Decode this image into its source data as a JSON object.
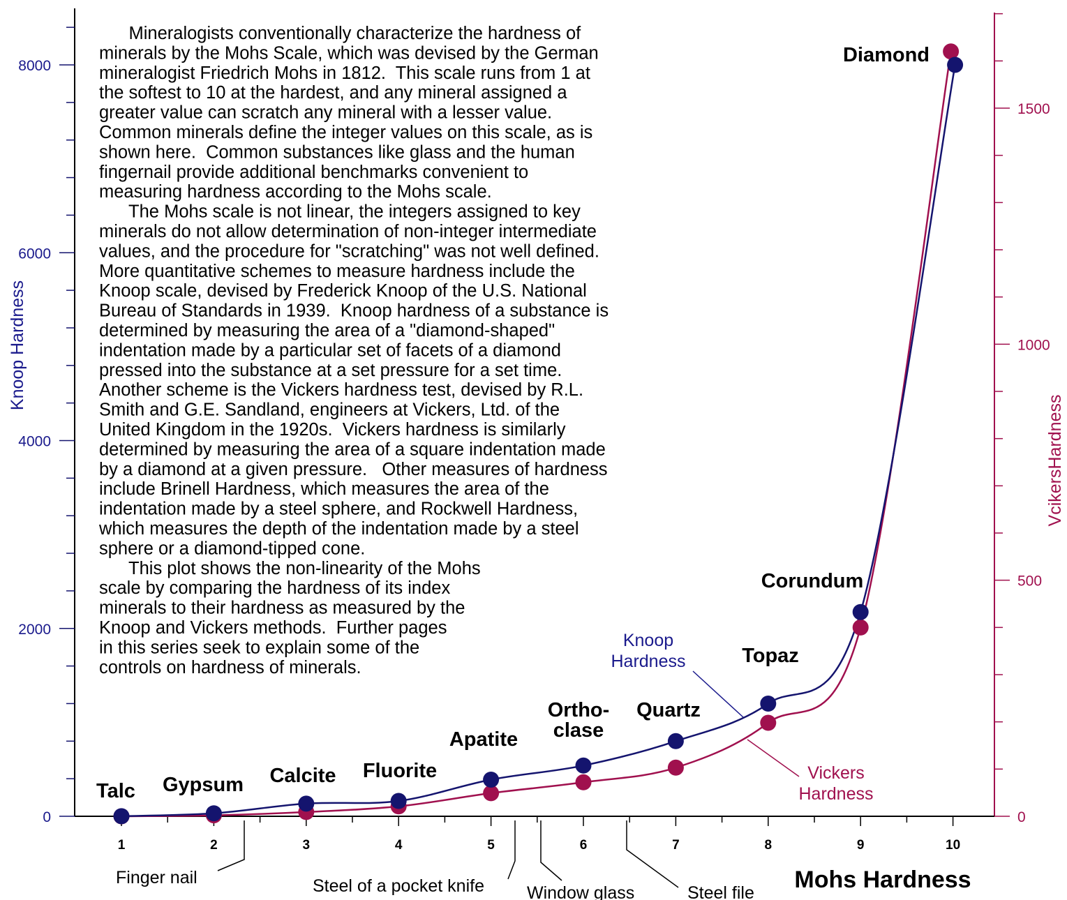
{
  "chart_data": {
    "type": "line",
    "xlabel": "Mohs Hardness",
    "ylabel": "Knoop Hardness",
    "y2label": "VcikersHardness",
    "xlim": [
      0.5,
      10.5
    ],
    "ylim": [
      0,
      8600
    ],
    "y2lim": [
      0,
      1720
    ],
    "x_ticks": [
      1,
      2,
      3,
      4,
      5,
      6,
      7,
      8,
      9,
      10
    ],
    "y_ticks": [
      0,
      2000,
      4000,
      6000,
      8000
    ],
    "y2_ticks": [
      0,
      500,
      1000,
      1500
    ],
    "grid": false,
    "minerals": [
      "Talc",
      "Gypsum",
      "Calcite",
      "Fluorite",
      "Apatite",
      "Ortho-\nclase",
      "Quartz",
      "Topaz",
      "Corundum",
      "Diamond"
    ],
    "series": [
      {
        "name": "Knoop Hardness",
        "axis": "left",
        "color": "#14146e",
        "x": [
          1,
          2,
          3,
          4,
          5,
          6,
          7,
          8,
          9,
          10
        ],
        "y": [
          1,
          32,
          135,
          163,
          390,
          540,
          800,
          1200,
          2175,
          8000
        ]
      },
      {
        "name": "Vickers Hardness",
        "axis": "right",
        "color": "#a0104e",
        "x": [
          1,
          2,
          3,
          4,
          5,
          6,
          7,
          8,
          9,
          10
        ],
        "y": [
          0,
          2,
          9,
          21,
          49,
          72,
          103,
          198,
          400,
          1620
        ]
      }
    ],
    "benchmarks": [
      {
        "label": "Finger nail",
        "x": 2.3
      },
      {
        "label": "Steel of a pocket knife",
        "x": 5.25
      },
      {
        "label": "Window glass",
        "x": 5.5
      },
      {
        "label": "Steel file",
        "x": 6.5
      }
    ],
    "description": [
      "      Mineralogists conventionally characterize the hardness of",
      "minerals by the Mohs Scale, which was devised by the German",
      "mineralogist Friedrich Mohs in 1812.  This scale runs from 1 at",
      "the softest to 10 at the hardest, and any mineral assigned a",
      "greater value can scratch any mineral with a lesser value.",
      "Common minerals define the integer values on this scale, as is",
      "shown here.  Common substances like glass and the human",
      "fingernail provide additional benchmarks convenient to",
      "measuring hardness according to the Mohs scale.",
      "      The Mohs scale is not linear, the integers assigned to key",
      "minerals do not allow determination of non-integer intermediate",
      "values, and the procedure for \"scratching\" was not well defined.",
      "More quantitative schemes to measure hardness include the",
      "Knoop scale, devised by Frederick Knoop of the U.S. National",
      "Bureau of Standards in 1939.  Knoop hardness of a substance is",
      "determined by measuring the area of a \"diamond-shaped\"",
      "indentation made by a particular set of facets of a diamond",
      "pressed into the substance at a set pressure for a set time.",
      "Another scheme is the Vickers hardness test, devised by R.L.",
      "Smith and G.E. Sandland, engineers at Vickers, Ltd. of the",
      "United Kingdom in the 1920s.  Vickers hardness is similarly",
      "determined by measuring the area of a square indentation made",
      "by a diamond at a given pressure.   Other measures of hardness",
      "include Brinell Hardness, which measures the area of the",
      "indentation made by a steel sphere, and Rockwell Hardness,",
      "which measures the depth of the indentation made by a steel",
      "sphere or a diamond-tipped cone.",
      "      This plot shows the non-linearity of the Mohs",
      "scale by comparing the hardness of its index",
      "minerals to their hardness as measured by the",
      "Knoop and Vickers methods.  Further pages",
      "in this series seek to explain some of the",
      "controls on hardness of minerals."
    ],
    "series_labels": {
      "knoop": [
        "Knoop",
        "Hardness"
      ],
      "vickers": [
        "Vickers",
        "Hardness"
      ]
    }
  },
  "colors": {
    "knoop": "#14146e",
    "knoop_text": "#1a1a8c",
    "vickers": "#a0104e"
  }
}
